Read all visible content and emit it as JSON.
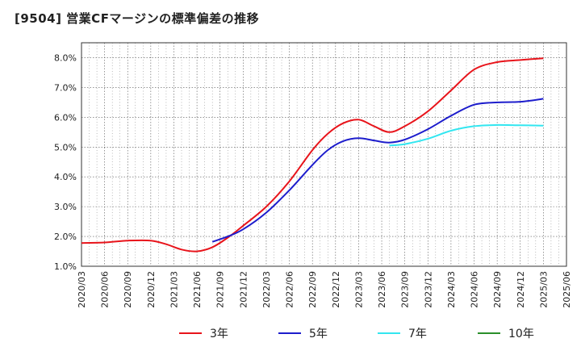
{
  "chart_data": {
    "type": "line",
    "title": "[9504]  営業CFマージンの標準偏差の推移",
    "xlabel": "",
    "ylabel": "",
    "ylim": [
      1.0,
      8.5
    ],
    "yticks": [
      "1.0%",
      "2.0%",
      "3.0%",
      "4.0%",
      "5.0%",
      "6.0%",
      "7.0%",
      "8.0%"
    ],
    "categories": [
      "2020/03",
      "2020/06",
      "2020/09",
      "2020/12",
      "2021/03",
      "2021/06",
      "2021/09",
      "2021/12",
      "2022/03",
      "2022/06",
      "2022/09",
      "2022/12",
      "2023/03",
      "2023/06",
      "2023/09",
      "2023/12",
      "2024/03",
      "2024/06",
      "2024/09",
      "2024/12",
      "2025/03",
      "2025/06"
    ],
    "grid": true,
    "legend_position": "bottom",
    "series": [
      {
        "name": "3年",
        "color": "#e8141b",
        "points": [
          [
            "2020/03",
            1.78
          ],
          [
            "2020/06",
            1.8
          ],
          [
            "2020/09",
            1.86
          ],
          [
            "2020/12",
            1.86
          ],
          [
            "2021/02",
            1.74
          ],
          [
            "2021/04",
            1.56
          ],
          [
            "2021/06",
            1.5
          ],
          [
            "2021/08",
            1.64
          ],
          [
            "2021/10",
            1.96
          ],
          [
            "2021/12",
            2.36
          ],
          [
            "2022/03",
            3.0
          ],
          [
            "2022/06",
            3.85
          ],
          [
            "2022/09",
            4.9
          ],
          [
            "2022/11",
            5.45
          ],
          [
            "2023/01",
            5.8
          ],
          [
            "2023/03",
            5.92
          ],
          [
            "2023/05",
            5.7
          ],
          [
            "2023/07",
            5.5
          ],
          [
            "2023/09",
            5.7
          ],
          [
            "2023/12",
            6.2
          ],
          [
            "2024/03",
            6.9
          ],
          [
            "2024/06",
            7.6
          ],
          [
            "2024/09",
            7.85
          ],
          [
            "2024/12",
            7.92
          ],
          [
            "2025/03",
            7.98
          ]
        ]
      },
      {
        "name": "5年",
        "color": "#1d1dcc",
        "points": [
          [
            "2021/08",
            1.82
          ],
          [
            "2021/10",
            2.0
          ],
          [
            "2021/12",
            2.24
          ],
          [
            "2022/03",
            2.8
          ],
          [
            "2022/06",
            3.55
          ],
          [
            "2022/09",
            4.4
          ],
          [
            "2022/11",
            4.9
          ],
          [
            "2023/01",
            5.2
          ],
          [
            "2023/03",
            5.3
          ],
          [
            "2023/05",
            5.22
          ],
          [
            "2023/07",
            5.15
          ],
          [
            "2023/09",
            5.25
          ],
          [
            "2023/12",
            5.6
          ],
          [
            "2024/03",
            6.05
          ],
          [
            "2024/06",
            6.42
          ],
          [
            "2024/09",
            6.5
          ],
          [
            "2024/12",
            6.52
          ],
          [
            "2025/03",
            6.62
          ]
        ]
      },
      {
        "name": "7年",
        "color": "#33e6f0",
        "points": [
          [
            "2023/07",
            5.05
          ],
          [
            "2023/09",
            5.1
          ],
          [
            "2023/12",
            5.28
          ],
          [
            "2024/03",
            5.55
          ],
          [
            "2024/06",
            5.7
          ],
          [
            "2024/09",
            5.74
          ],
          [
            "2024/12",
            5.73
          ],
          [
            "2025/03",
            5.72
          ]
        ]
      },
      {
        "name": "10年",
        "color": "#2a8f2a",
        "points": []
      }
    ]
  }
}
